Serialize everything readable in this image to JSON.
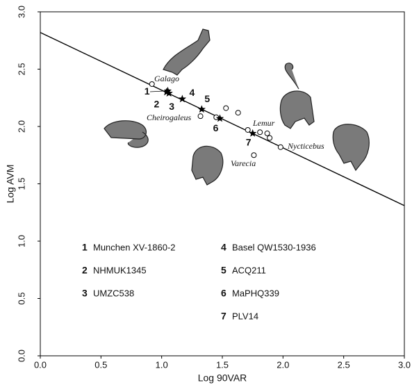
{
  "chart_data": {
    "type": "scatter",
    "xlabel": "Log 90VAR",
    "ylabel": "Log AVM",
    "xlim": [
      0,
      3
    ],
    "ylim": [
      0,
      3
    ],
    "xticks": [
      {
        "value": 0,
        "label": "0.0"
      },
      0.5,
      {
        "value": 1,
        "label": "1.0"
      },
      1.5,
      {
        "value": 2,
        "label": "2.0"
      },
      2.5,
      {
        "value": 3,
        "label": "3.0"
      }
    ],
    "yticks": [
      {
        "value": 0,
        "label": "0.0"
      },
      0.5,
      {
        "value": 1,
        "label": "1.0"
      },
      1.5,
      {
        "value": 2,
        "label": "2.0"
      },
      2.5,
      {
        "value": 3,
        "label": "3.0"
      }
    ],
    "series": [
      {
        "marker": "circle",
        "color": "#000000",
        "x": [
          0.92,
          1.32,
          1.45,
          1.53,
          1.63,
          1.71,
          1.81,
          1.87,
          1.89,
          1.98,
          1.76
        ],
        "y": [
          2.37,
          2.09,
          2.08,
          2.16,
          2.12,
          1.97,
          1.95,
          1.94,
          1.9,
          1.82,
          1.75
        ]
      },
      {
        "marker": "star",
        "color": "#000000",
        "x": [
          1.04,
          1.05,
          1.06,
          1.17,
          1.33,
          1.48,
          1.75
        ],
        "y": [
          2.3,
          2.31,
          2.29,
          2.24,
          2.15,
          2.07,
          1.94
        ],
        "point_labels": [
          "1",
          "2",
          "3",
          "4",
          "5",
          "6",
          "7"
        ]
      }
    ],
    "line": {
      "x": [
        0,
        3
      ],
      "y": [
        2.82,
        1.31
      ]
    },
    "annotations": [
      "Galago",
      "Cheirogaleus",
      "Lemur",
      "Nycticebus",
      "Varecia"
    ],
    "legend": [
      {
        "number": "1",
        "name": "Munchen XV-1860-2"
      },
      {
        "number": "2",
        "name": "NHMUK1345"
      },
      {
        "number": "3",
        "name": "UMZC538"
      },
      {
        "number": "4",
        "name": "Basel QW1530-1936"
      },
      {
        "number": "5",
        "name": "ACQ211"
      },
      {
        "number": "6",
        "name": "MaPHQ339"
      },
      {
        "number": "7",
        "name": "PLV14"
      }
    ]
  }
}
